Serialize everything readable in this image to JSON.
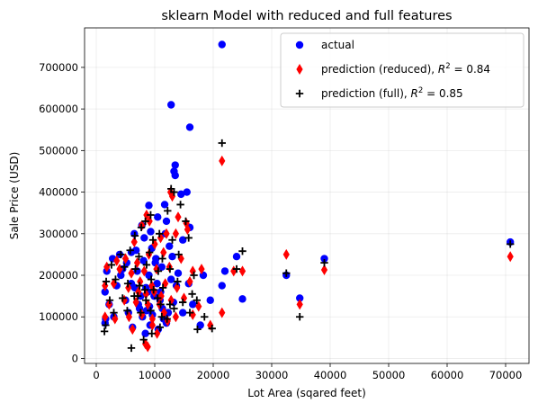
{
  "chart_data": {
    "type": "scatter",
    "title": "sklearn Model with reduced and full features",
    "xlabel": "Lot Area (sqared feet)",
    "ylabel": "Sale Price (USD)",
    "xlim": [
      -2000,
      74000
    ],
    "ylim": [
      -12000,
      795000
    ],
    "xticks": [
      0,
      10000,
      20000,
      30000,
      40000,
      50000,
      60000,
      70000
    ],
    "yticks": [
      0,
      100000,
      200000,
      300000,
      400000,
      500000,
      600000,
      700000
    ],
    "grid": true,
    "legend_position": "upper right",
    "r2_symbol": "R",
    "series": [
      {
        "name": "actual",
        "marker": "circle",
        "color": "#0000ff",
        "points": [
          [
            21500,
            755000
          ],
          [
            12800,
            610000
          ],
          [
            16000,
            556000
          ],
          [
            13500,
            465000
          ],
          [
            13300,
            450000
          ],
          [
            13500,
            440000
          ],
          [
            15500,
            400000
          ],
          [
            14500,
            395000
          ],
          [
            11700,
            370000
          ],
          [
            9000,
            368000
          ],
          [
            10500,
            340000
          ],
          [
            12000,
            330000
          ],
          [
            7800,
            320000
          ],
          [
            16000,
            315000
          ],
          [
            6500,
            300000
          ],
          [
            9300,
            305000
          ],
          [
            11800,
            300000
          ],
          [
            8200,
            290000
          ],
          [
            14800,
            285000
          ],
          [
            4000,
            250000
          ],
          [
            6000,
            255000
          ],
          [
            9500,
            265000
          ],
          [
            12500,
            270000
          ],
          [
            2800,
            240000
          ],
          [
            5200,
            230000
          ],
          [
            8100,
            235000
          ],
          [
            10200,
            240000
          ],
          [
            13000,
            245000
          ],
          [
            24000,
            245000
          ],
          [
            1800,
            210000
          ],
          [
            4500,
            215000
          ],
          [
            7000,
            210000
          ],
          [
            9000,
            200000
          ],
          [
            11200,
            220000
          ],
          [
            14000,
            205000
          ],
          [
            18300,
            200000
          ],
          [
            22000,
            210000
          ],
          [
            32500,
            200000
          ],
          [
            39000,
            240000
          ],
          [
            70800,
            280000
          ],
          [
            1500,
            160000
          ],
          [
            3500,
            175000
          ],
          [
            6000,
            180000
          ],
          [
            8500,
            170000
          ],
          [
            10400,
            180000
          ],
          [
            12800,
            190000
          ],
          [
            15800,
            180000
          ],
          [
            21500,
            175000
          ],
          [
            2200,
            130000
          ],
          [
            5000,
            140000
          ],
          [
            7200,
            130000
          ],
          [
            9100,
            125000
          ],
          [
            10900,
            140000
          ],
          [
            13200,
            135000
          ],
          [
            16500,
            130000
          ],
          [
            19500,
            140000
          ],
          [
            25000,
            143000
          ],
          [
            34800,
            145000
          ],
          [
            1600,
            95000
          ],
          [
            3000,
            100000
          ],
          [
            5500,
            110000
          ],
          [
            7900,
            100000
          ],
          [
            9600,
            105000
          ],
          [
            11500,
            95000
          ],
          [
            14800,
            110000
          ],
          [
            17800,
            80000
          ],
          [
            6200,
            75000
          ],
          [
            8400,
            60000
          ],
          [
            9200,
            80000
          ],
          [
            10600,
            70000
          ],
          [
            12000,
            85000
          ],
          [
            1500,
            85000
          ],
          [
            7600,
            150000
          ],
          [
            8800,
            160000
          ],
          [
            9900,
            150000
          ],
          [
            11000,
            160000
          ],
          [
            4200,
            200000
          ],
          [
            6800,
            260000
          ],
          [
            7400,
            120000
          ],
          [
            8600,
            115000
          ],
          [
            10100,
            230000
          ],
          [
            11300,
            120000
          ],
          [
            12300,
            110000
          ],
          [
            13700,
            175000
          ],
          [
            6600,
            170000
          ]
        ]
      },
      {
        "name": "prediction (reduced), ",
        "r2": "0.84",
        "marker": "thin_diamond",
        "color": "#ff0000",
        "points": [
          [
            21500,
            475000
          ],
          [
            13000,
            390000
          ],
          [
            12700,
            400000
          ],
          [
            14000,
            340000
          ],
          [
            15400,
            325000
          ],
          [
            12000,
            300000
          ],
          [
            9100,
            330000
          ],
          [
            7800,
            320000
          ],
          [
            8600,
            345000
          ],
          [
            11000,
            290000
          ],
          [
            6500,
            280000
          ],
          [
            10000,
            275000
          ],
          [
            13600,
            300000
          ],
          [
            15600,
            310000
          ],
          [
            3500,
            235000
          ],
          [
            5000,
            240000
          ],
          [
            7000,
            230000
          ],
          [
            9000,
            250000
          ],
          [
            11500,
            255000
          ],
          [
            14500,
            240000
          ],
          [
            1800,
            220000
          ],
          [
            4000,
            215000
          ],
          [
            6000,
            205000
          ],
          [
            8200,
            210000
          ],
          [
            10300,
            215000
          ],
          [
            12500,
            220000
          ],
          [
            16500,
            210000
          ],
          [
            18000,
            215000
          ],
          [
            23500,
            210000
          ],
          [
            25000,
            210000
          ],
          [
            32500,
            250000
          ],
          [
            39000,
            213000
          ],
          [
            70800,
            245000
          ],
          [
            34800,
            130000
          ],
          [
            21500,
            110000
          ],
          [
            1500,
            175000
          ],
          [
            3000,
            180000
          ],
          [
            5500,
            170000
          ],
          [
            7500,
            185000
          ],
          [
            9500,
            175000
          ],
          [
            11800,
            180000
          ],
          [
            13800,
            170000
          ],
          [
            16000,
            185000
          ],
          [
            2200,
            130000
          ],
          [
            4800,
            140000
          ],
          [
            6800,
            135000
          ],
          [
            8800,
            130000
          ],
          [
            10800,
            130000
          ],
          [
            12800,
            140000
          ],
          [
            15000,
            145000
          ],
          [
            17500,
            125000
          ],
          [
            19500,
            80000
          ],
          [
            1500,
            100000
          ],
          [
            3200,
            95000
          ],
          [
            5600,
            100000
          ],
          [
            7800,
            105000
          ],
          [
            9600,
            95000
          ],
          [
            11600,
            110000
          ],
          [
            13600,
            100000
          ],
          [
            16500,
            105000
          ],
          [
            8400,
            35000
          ],
          [
            8800,
            28000
          ],
          [
            6200,
            70000
          ],
          [
            9600,
            80000
          ],
          [
            10400,
            60000
          ],
          [
            12200,
            90000
          ],
          [
            7200,
            160000
          ],
          [
            8500,
            155000
          ],
          [
            9900,
            160000
          ],
          [
            11100,
            150000
          ]
        ]
      },
      {
        "name": "prediction (full), ",
        "r2": "0.85",
        "marker": "plus",
        "color": "#000000",
        "points": [
          [
            21500,
            518000
          ],
          [
            12800,
            408000
          ],
          [
            13300,
            400000
          ],
          [
            14400,
            370000
          ],
          [
            15300,
            330000
          ],
          [
            12200,
            355000
          ],
          [
            9300,
            345000
          ],
          [
            8400,
            330000
          ],
          [
            7700,
            315000
          ],
          [
            10800,
            300000
          ],
          [
            6600,
            295000
          ],
          [
            9700,
            285000
          ],
          [
            13000,
            285000
          ],
          [
            15800,
            290000
          ],
          [
            25000,
            258000
          ],
          [
            4200,
            250000
          ],
          [
            5800,
            260000
          ],
          [
            7300,
            245000
          ],
          [
            9100,
            255000
          ],
          [
            11300,
            240000
          ],
          [
            14100,
            250000
          ],
          [
            2600,
            225000
          ],
          [
            4800,
            220000
          ],
          [
            6700,
            215000
          ],
          [
            8600,
            225000
          ],
          [
            10600,
            210000
          ],
          [
            12600,
            215000
          ],
          [
            16700,
            200000
          ],
          [
            24000,
            215000
          ],
          [
            32500,
            205000
          ],
          [
            39000,
            230000
          ],
          [
            70800,
            275000
          ],
          [
            34800,
            100000
          ],
          [
            1700,
            185000
          ],
          [
            3300,
            190000
          ],
          [
            5400,
            180000
          ],
          [
            7400,
            175000
          ],
          [
            9400,
            190000
          ],
          [
            11400,
            170000
          ],
          [
            13900,
            185000
          ],
          [
            16400,
            155000
          ],
          [
            2300,
            140000
          ],
          [
            4500,
            145000
          ],
          [
            6500,
            150000
          ],
          [
            8500,
            140000
          ],
          [
            10500,
            145000
          ],
          [
            12600,
            130000
          ],
          [
            14800,
            135000
          ],
          [
            17200,
            140000
          ],
          [
            19800,
            72000
          ],
          [
            1400,
            65000
          ],
          [
            3000,
            110000
          ],
          [
            5300,
            115000
          ],
          [
            7600,
            110000
          ],
          [
            9300,
            115000
          ],
          [
            11200,
            100000
          ],
          [
            13300,
            120000
          ],
          [
            16000,
            110000
          ],
          [
            6000,
            25000
          ],
          [
            8100,
            45000
          ],
          [
            9500,
            60000
          ],
          [
            10900,
            75000
          ],
          [
            12100,
            95000
          ],
          [
            7100,
            150000
          ],
          [
            8300,
            165000
          ],
          [
            9800,
            165000
          ],
          [
            11000,
            130000
          ],
          [
            1600,
            80000
          ],
          [
            18500,
            100000
          ],
          [
            17300,
            70000
          ]
        ]
      }
    ]
  }
}
